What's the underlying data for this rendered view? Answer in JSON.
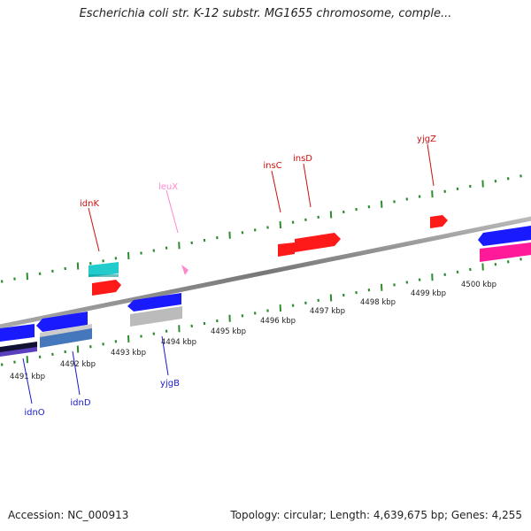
{
  "title": "Escherichia coli str. K-12 substr. MG1655 chromosome, comple...",
  "footer": {
    "accession": "Accession: NC_000913",
    "topology": "Topology: circular; Length: 4,639,675 bp; Genes: 4,255"
  },
  "scale": {
    "unit": "kbp",
    "ticks": [
      {
        "label": "4491 kbp"
      },
      {
        "label": "4492 kbp"
      },
      {
        "label": "4493 kbp"
      },
      {
        "label": "4494 kbp"
      },
      {
        "label": "4495 kbp"
      },
      {
        "label": "4496 kbp"
      },
      {
        "label": "4497 kbp"
      },
      {
        "label": "4498 kbp"
      },
      {
        "label": "4499 kbp"
      },
      {
        "label": "4500 kbp"
      }
    ]
  },
  "labels": {
    "forward": [
      "idnK",
      "leuX",
      "insC",
      "insD",
      "yjgZ"
    ],
    "reverse": [
      "idnO",
      "idnD",
      "yjgB"
    ]
  },
  "colors": {
    "backbone": "#888888",
    "tick_marks": "#2e8b2e",
    "forward_label": "#cc1111",
    "leuX_label": "#ff88cc",
    "reverse_label": "#1a1acc",
    "gene_red": "#ff1a1a",
    "gene_blue": "#1a1aff",
    "gene_cyan": "#22cccc",
    "gene_gray": "#bbbbbb",
    "gene_pink": "#ff1a99",
    "gene_steelblue": "#4477bb"
  }
}
